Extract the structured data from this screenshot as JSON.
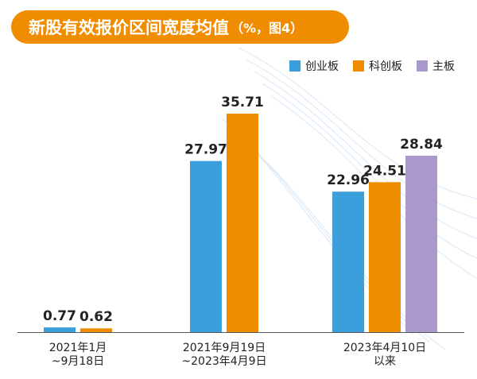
{
  "title": {
    "main": "新股有效报价区间宽度均值",
    "sub": "（%，图4）"
  },
  "legend": [
    {
      "name": "创业板",
      "color": "#3b9fdc"
    },
    {
      "name": "科创板",
      "color": "#f08c00"
    },
    {
      "name": "主板",
      "color": "#a99acb"
    }
  ],
  "chart_data": {
    "type": "bar",
    "title": "新股有效报价区间宽度均值（%，图4）",
    "xlabel": "",
    "ylabel": "",
    "ylim": [
      0,
      40
    ],
    "grid": false,
    "legend_position": "top-right",
    "categories": [
      {
        "label_lines": [
          "2021年1月",
          "~9月18日"
        ]
      },
      {
        "label_lines": [
          "2021年9月19日",
          "~2023年4月9日"
        ]
      },
      {
        "label_lines": [
          "2023年4月10日",
          "以来"
        ]
      }
    ],
    "series": [
      {
        "name": "创业板",
        "color": "#3b9fdc",
        "values": [
          0.77,
          27.97,
          22.96
        ]
      },
      {
        "name": "科创板",
        "color": "#f08c00",
        "values": [
          0.62,
          35.71,
          24.51
        ]
      },
      {
        "name": "主板",
        "color": "#a99acb",
        "values": [
          null,
          null,
          28.84
        ]
      }
    ],
    "value_labels": [
      [
        "0.77",
        "27.97",
        "22.96"
      ],
      [
        "0.62",
        "35.71",
        "24.51"
      ],
      [
        null,
        null,
        "28.84"
      ]
    ]
  }
}
